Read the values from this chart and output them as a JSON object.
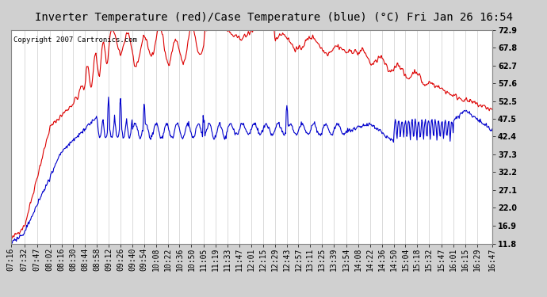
{
  "title": "Inverter Temperature (red)/Case Temperature (blue) (°C) Fri Jan 26 16:54",
  "copyright": "Copyright 2007 Cartronics.com",
  "background_color": "#d0d0d0",
  "plot_bg_color": "#ffffff",
  "grid_color": "#b0b0b0",
  "red_color": "#dd0000",
  "blue_color": "#0000cc",
  "yticks_right": [
    11.8,
    16.9,
    22.0,
    27.1,
    32.2,
    37.3,
    42.4,
    47.5,
    52.5,
    57.6,
    62.7,
    67.8,
    72.9
  ],
  "x_labels": [
    "07:16",
    "07:32",
    "07:47",
    "08:02",
    "08:16",
    "08:30",
    "08:44",
    "08:58",
    "09:12",
    "09:26",
    "09:40",
    "09:54",
    "10:08",
    "10:22",
    "10:36",
    "10:50",
    "11:05",
    "11:19",
    "11:33",
    "11:47",
    "12:01",
    "12:15",
    "12:29",
    "12:43",
    "12:57",
    "13:11",
    "13:25",
    "13:39",
    "13:54",
    "14:08",
    "14:22",
    "14:36",
    "14:50",
    "15:04",
    "15:18",
    "15:32",
    "15:47",
    "16:01",
    "16:15",
    "16:29",
    "16:47"
  ],
  "title_fontsize": 10,
  "copyright_fontsize": 6.5,
  "tick_fontsize": 7,
  "linewidth": 0.8
}
